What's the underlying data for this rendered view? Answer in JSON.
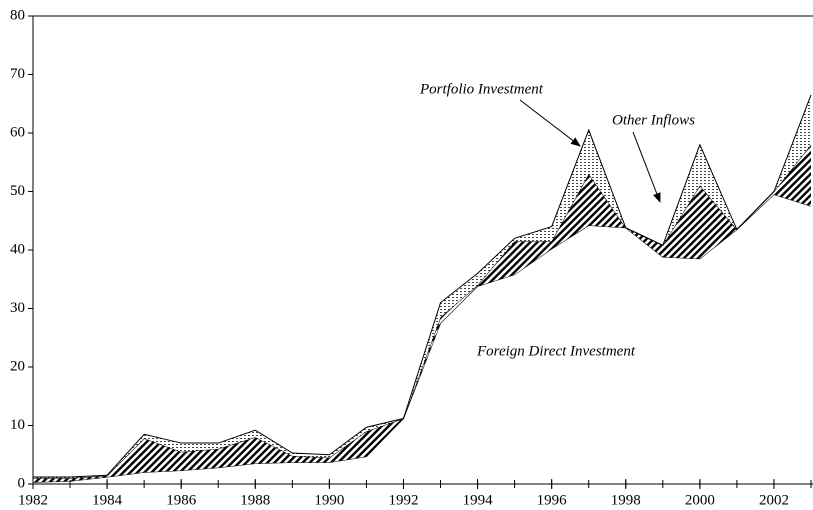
{
  "chart_data": {
    "type": "stacked_area",
    "x": [
      1982,
      1983,
      1984,
      1985,
      1986,
      1987,
      1988,
      1989,
      1990,
      1991,
      1992,
      1993,
      1994,
      1995,
      1996,
      1997,
      1998,
      1999,
      2000,
      2001,
      2002,
      2003
    ],
    "series": [
      {
        "name": "Foreign Direct Investment",
        "color": "#ffffff",
        "values": [
          0.3,
          0.5,
          1.2,
          2,
          2.3,
          2.8,
          3.5,
          3.7,
          3.7,
          4.7,
          11.2,
          27.5,
          33.8,
          35.8,
          40.2,
          44.2,
          43.8,
          38.8,
          38.5,
          43.5,
          49.5,
          47.5
        ]
      },
      {
        "name": "Other Inflows",
        "color": "#000000",
        "values": [
          0.7,
          0.5,
          0.2,
          5.8,
          3.2,
          3.2,
          4.5,
          1.1,
          0.8,
          4.3,
          0,
          1,
          0.2,
          5.7,
          1.3,
          8.8,
          0,
          2,
          12.5,
          0,
          0.5,
          10.5
        ]
      },
      {
        "name": "Portfolio Investment",
        "color": "#000000",
        "values": [
          0.2,
          0.2,
          0.1,
          0.7,
          1.5,
          1,
          1.2,
          0.5,
          0.5,
          0.7,
          0,
          2.5,
          2,
          0.5,
          2.5,
          7.5,
          0,
          0,
          7,
          0,
          0,
          8.5
        ]
      }
    ],
    "xlim": [
      1982,
      2003
    ],
    "xticks": [
      1982,
      1984,
      1986,
      1988,
      1990,
      1992,
      1994,
      1996,
      1998,
      2000,
      2002
    ],
    "ylim": [
      0,
      80
    ],
    "yticks": [
      0,
      10,
      20,
      30,
      40,
      50,
      60,
      70,
      80
    ]
  }
}
